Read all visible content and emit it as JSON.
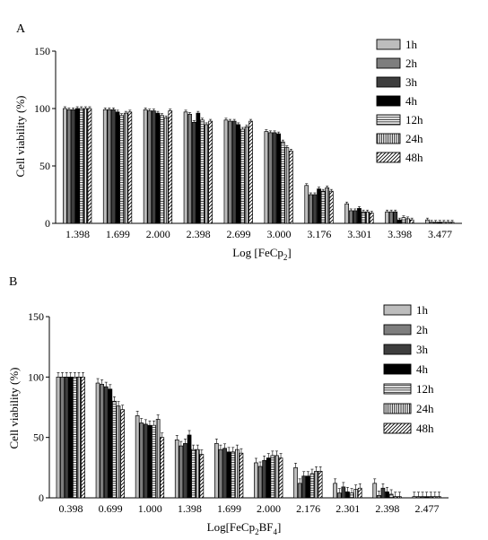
{
  "chart_data": [
    {
      "panel_label": "A",
      "type": "bar",
      "xlabel": "Log [FeCp",
      "xlabel_sub": "2",
      "xlabel_end": "]",
      "ylabel": "Cell viability (%)",
      "ylim": [
        0,
        150
      ],
      "yticks": [
        "0",
        "50",
        "100",
        "150"
      ],
      "grid": false,
      "legend_position": "right",
      "categories": [
        "1.398",
        "1.699",
        "2.000",
        "2.398",
        "2.699",
        "3.000",
        "3.176",
        "3.301",
        "3.398",
        "3.477"
      ],
      "series": [
        {
          "name": "1h",
          "values": [
            100,
            99,
            99,
            97,
            90,
            80,
            33,
            17,
            10,
            3
          ]
        },
        {
          "name": "2h",
          "values": [
            99,
            99,
            98,
            95,
            89,
            79,
            25,
            11,
            10,
            1
          ]
        },
        {
          "name": "3h",
          "values": [
            99,
            99,
            98,
            88,
            89,
            79,
            25,
            11,
            10,
            1
          ]
        },
        {
          "name": "4h",
          "values": [
            100,
            97,
            96,
            96,
            86,
            78,
            30,
            13,
            3,
            1
          ]
        },
        {
          "name": "12h",
          "values": [
            100,
            94,
            94,
            90,
            82,
            71,
            28,
            10,
            5,
            1
          ]
        },
        {
          "name": "24h",
          "values": [
            100,
            96,
            92,
            86,
            84,
            66,
            31,
            10,
            4,
            1
          ]
        },
        {
          "name": "48h",
          "values": [
            100,
            97,
            98,
            89,
            89,
            63,
            28,
            9,
            3,
            1
          ]
        }
      ]
    },
    {
      "panel_label": "B",
      "type": "bar",
      "xlabel": "Log[FeCp",
      "xlabel_sub": "2",
      "xlabel_mid": "BF",
      "xlabel_sub2": "4",
      "xlabel_end": "]",
      "ylabel": "Cell viability (%)",
      "ylim": [
        0,
        150
      ],
      "yticks": [
        "0",
        "50",
        "100",
        "150"
      ],
      "grid": false,
      "legend_position": "right",
      "categories": [
        "0.398",
        "0.699",
        "1.000",
        "1.398",
        "1.699",
        "2.000",
        "2.176",
        "2.301",
        "2.398",
        "2.477"
      ],
      "series": [
        {
          "name": "1h",
          "values": [
            100,
            95,
            68,
            48,
            45,
            29,
            25,
            12,
            12,
            1
          ]
        },
        {
          "name": "2h",
          "values": [
            100,
            94,
            62,
            43,
            40,
            26,
            12,
            4,
            2,
            1
          ]
        },
        {
          "name": "3h",
          "values": [
            100,
            92,
            61,
            45,
            41,
            31,
            18,
            9,
            8,
            1
          ]
        },
        {
          "name": "4h",
          "values": [
            100,
            90,
            60,
            52,
            38,
            33,
            18,
            5,
            5,
            1
          ]
        },
        {
          "name": "12h",
          "values": [
            100,
            80,
            60,
            40,
            38,
            35,
            20,
            4,
            3,
            1
          ]
        },
        {
          "name": "24h",
          "values": [
            100,
            76,
            65,
            40,
            40,
            35,
            22,
            7,
            1,
            1
          ]
        },
        {
          "name": "48h",
          "values": [
            100,
            73,
            50,
            36,
            37,
            33,
            22,
            8,
            1,
            1
          ]
        }
      ]
    }
  ]
}
